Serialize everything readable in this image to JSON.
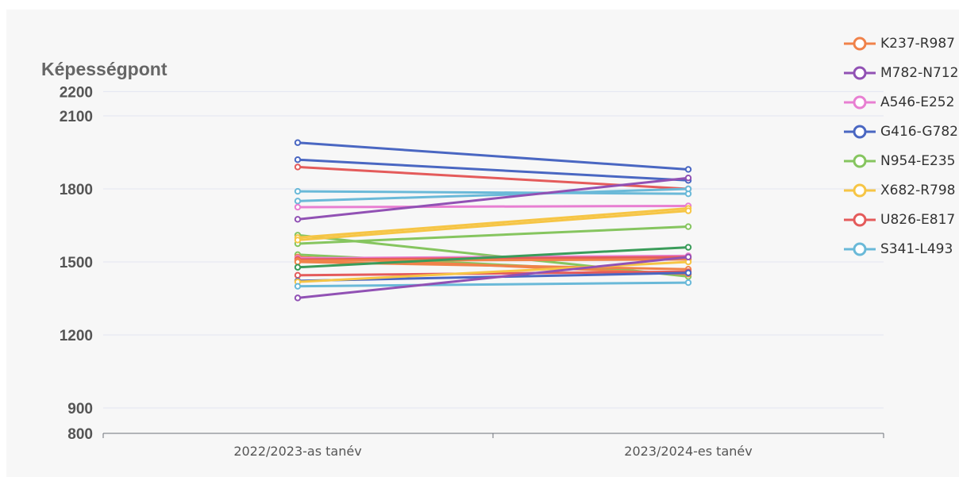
{
  "chart_data": {
    "type": "line",
    "title": "",
    "ylabel": "Képességpont",
    "xlabel": "",
    "categories": [
      "2022/2023-as tanév",
      "2023/2024-es tanév"
    ],
    "y_ticks": [
      800,
      900,
      1200,
      1500,
      1800,
      2100,
      2200
    ],
    "ylim": [
      800,
      2200
    ],
    "grid": true,
    "legend_position": "top-right",
    "legend": [
      {
        "name": "K237-R987",
        "color": "#f0824a"
      },
      {
        "name": "M782-N712",
        "color": "#9151b4"
      },
      {
        "name": "A546-E252",
        "color": "#e87fd2"
      },
      {
        "name": "G416-G782",
        "color": "#4a67c2"
      },
      {
        "name": "N954-E235",
        "color": "#86c55f"
      },
      {
        "name": "X682-R798",
        "color": "#f6c545"
      },
      {
        "name": "U826-E817",
        "color": "#e45b5b"
      },
      {
        "name": "S341-L493",
        "color": "#6ab9d8"
      }
    ],
    "series": [
      {
        "color": "#4a67c2",
        "values": [
          1990,
          1880
        ]
      },
      {
        "color": "#4a67c2",
        "values": [
          1920,
          1835
        ]
      },
      {
        "color": "#e45b5b",
        "values": [
          1890,
          1800
        ]
      },
      {
        "color": "#6ab9d8",
        "values": [
          1790,
          1780
        ]
      },
      {
        "color": "#6ab9d8",
        "values": [
          1750,
          1800
        ]
      },
      {
        "color": "#e87fd2",
        "values": [
          1725,
          1730
        ]
      },
      {
        "color": "#9151b4",
        "values": [
          1675,
          1845
        ]
      },
      {
        "color": "#86c55f",
        "values": [
          1610,
          1440
        ]
      },
      {
        "color": "#f6c545",
        "values": [
          1600,
          1720
        ]
      },
      {
        "color": "#86c55f",
        "values": [
          1575,
          1645
        ]
      },
      {
        "color": "#f6c545",
        "values": [
          1590,
          1710
        ]
      },
      {
        "color": "#86c55f",
        "values": [
          1530,
          1450
        ]
      },
      {
        "color": "#f0824a",
        "values": [
          1520,
          1450
        ]
      },
      {
        "color": "#e87fd2",
        "values": [
          1515,
          1525
        ]
      },
      {
        "color": "#e45b5b",
        "values": [
          1510,
          1520
        ]
      },
      {
        "color": "#f0824a",
        "values": [
          1505,
          1510
        ]
      },
      {
        "color": "#f0824a",
        "values": [
          1500,
          1470
        ]
      },
      {
        "color": "#3a9c5a",
        "values": [
          1478,
          1560
        ]
      },
      {
        "color": "#e45b5b",
        "values": [
          1445,
          1460
        ]
      },
      {
        "color": "#4a67c2",
        "values": [
          1422,
          1455
        ]
      },
      {
        "color": "#f6c545",
        "values": [
          1418,
          1500
        ]
      },
      {
        "color": "#6ab9d8",
        "values": [
          1400,
          1415
        ]
      },
      {
        "color": "#9151b4",
        "values": [
          1352,
          1520
        ]
      }
    ]
  }
}
